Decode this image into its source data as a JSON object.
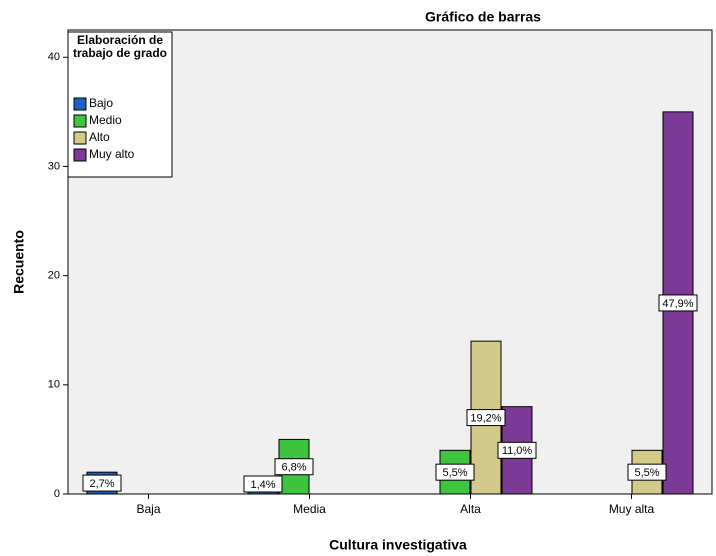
{
  "chart_data": {
    "type": "bar",
    "title": "Gráfico de barras",
    "x_label": "Cultura investigativa",
    "y_label": "Recuento",
    "legend_title": "Elaboración de trabajo de grado",
    "legend_position": "upper left",
    "categories": [
      "Baja",
      "Media",
      "Alta",
      "Muy alta"
    ],
    "series": [
      {
        "name": "Bajo",
        "color": "#1f5fbf",
        "values": [
          2,
          1,
          null,
          null
        ],
        "percentages": [
          2.7,
          1.4,
          null,
          null
        ],
        "percentage_labels": [
          "2,7%",
          "1,4%",
          null,
          null
        ]
      },
      {
        "name": "Medio",
        "color": "#3ec43e",
        "values": [
          null,
          5,
          4,
          null
        ],
        "percentages": [
          null,
          6.8,
          5.5,
          null
        ],
        "percentage_labels": [
          null,
          "6,8%",
          "5,5%",
          null
        ]
      },
      {
        "name": "Alto",
        "color": "#d3c98a",
        "values": [
          null,
          null,
          14,
          4
        ],
        "percentages": [
          null,
          null,
          19.2,
          5.5
        ],
        "percentage_labels": [
          null,
          null,
          "19,2%",
          "5,5%"
        ]
      },
      {
        "name": "Muy alto",
        "color": "#7b3a96",
        "values": [
          null,
          null,
          8,
          35
        ],
        "percentages": [
          null,
          null,
          11.0,
          47.9
        ],
        "percentage_labels": [
          null,
          null,
          "11,0%",
          "47,9%"
        ]
      }
    ],
    "ylim": [
      0,
      42.5
    ],
    "yticks": [
      0,
      10,
      20,
      30,
      40
    ],
    "grid": false
  }
}
